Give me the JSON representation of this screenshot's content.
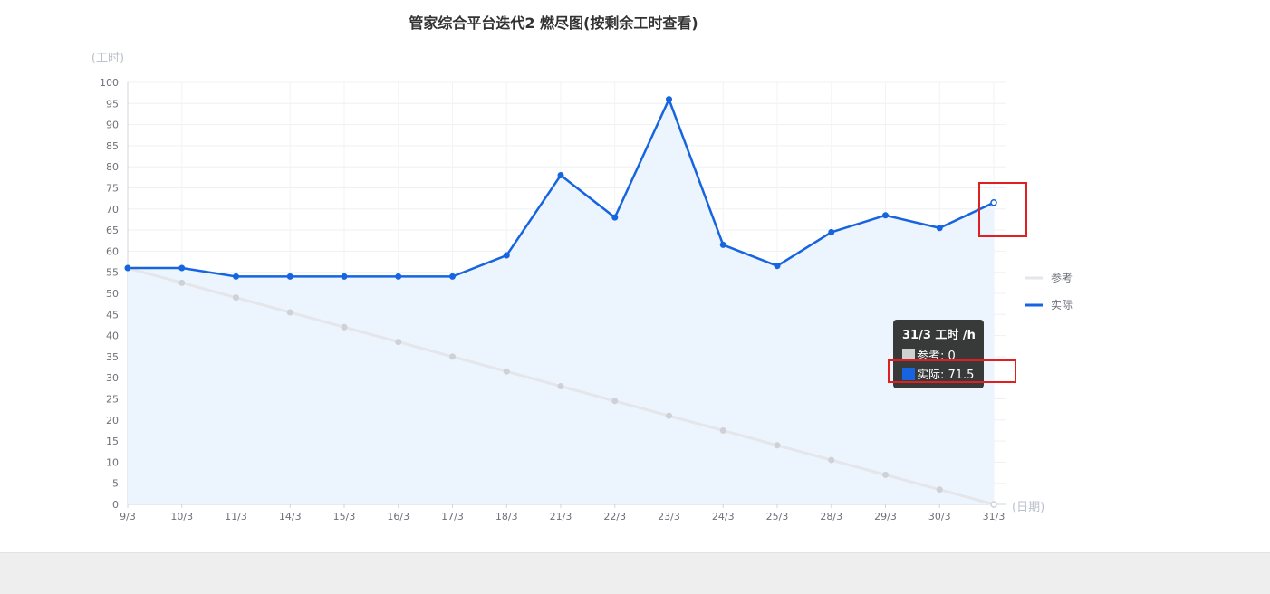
{
  "chart_data": {
    "type": "line",
    "title": "管家综合平台迭代2 燃尽图(按剩余工时查看)",
    "ylabel": "(工时)",
    "xlabel": "(日期)",
    "ylim": [
      0,
      100
    ],
    "y_ticks": [
      "0",
      "5",
      "10",
      "15",
      "20",
      "25",
      "30",
      "35",
      "40",
      "45",
      "50",
      "55",
      "60",
      "65",
      "70",
      "75",
      "80",
      "85",
      "90",
      "95",
      "100"
    ],
    "categories": [
      "9/3",
      "10/3",
      "11/3",
      "14/3",
      "15/3",
      "16/3",
      "17/3",
      "18/3",
      "21/3",
      "22/3",
      "23/3",
      "24/3",
      "25/3",
      "28/3",
      "29/3",
      "30/3",
      "31/3"
    ],
    "series": [
      {
        "name": "参考",
        "color": "#e4e6ea",
        "marker_color": "#cfd1d6",
        "values": [
          56,
          52.5,
          49,
          45.5,
          42,
          38.5,
          35,
          31.5,
          28,
          24.5,
          21,
          17.5,
          14,
          10.5,
          7,
          3.5,
          0
        ]
      },
      {
        "name": "实际",
        "color": "#1664e0",
        "marker_color": "#1664e0",
        "area_color": "#ecf4fd",
        "values": [
          56,
          56,
          54,
          54,
          54,
          54,
          54,
          59,
          78,
          68,
          96,
          61.5,
          56.5,
          64.5,
          68.5,
          65.5,
          71.5
        ]
      }
    ],
    "grid": true,
    "legend_position": "right"
  },
  "tooltip": {
    "title": "31/3 工时 /h",
    "rows": [
      {
        "label": "参考: 0",
        "color": "#d0d0d0"
      },
      {
        "label": "实际: 71.5",
        "color": "#1664e0"
      }
    ]
  }
}
